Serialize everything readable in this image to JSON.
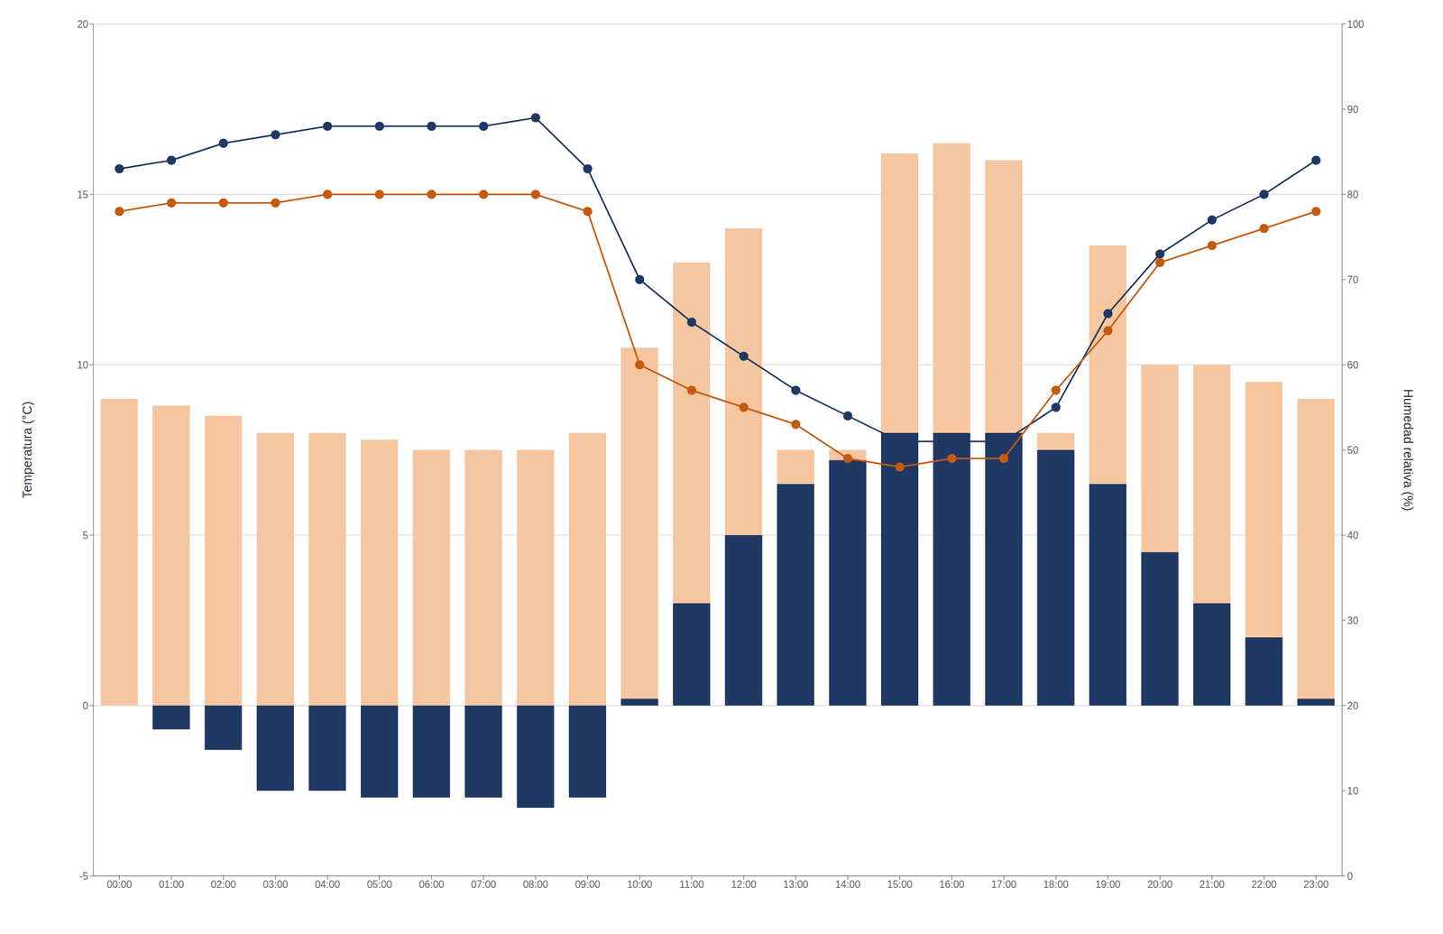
{
  "chart_data": {
    "type": "bar",
    "categories": [
      "00:00",
      "01:00",
      "02:00",
      "03:00",
      "04:00",
      "05:00",
      "06:00",
      "07:00",
      "08:00",
      "09:00",
      "10:00",
      "11:00",
      "12:00",
      "13:00",
      "14:00",
      "15:00",
      "16:00",
      "17:00",
      "18:00",
      "19:00",
      "20:00",
      "21:00",
      "22:00",
      "23:00"
    ],
    "series": [
      {
        "type": "bar",
        "color": "#F5C6A0",
        "values": [
          9.0,
          8.8,
          8.5,
          8.0,
          8.0,
          7.8,
          7.5,
          7.5,
          7.5,
          8.0,
          10.5,
          13.0,
          14.0,
          7.5,
          7.5,
          16.2,
          16.5,
          16.0,
          8.0,
          13.5,
          10.0,
          10.0,
          9.5,
          9.0
        ]
      },
      {
        "type": "bar",
        "color": "#1F3864",
        "values": [
          0.0,
          -0.7,
          -1.3,
          -2.5,
          -2.5,
          -2.7,
          -2.7,
          -2.7,
          -3.0,
          -2.7,
          0.2,
          3.0,
          5.0,
          6.5,
          7.2,
          8.0,
          8.0,
          8.0,
          7.5,
          6.5,
          4.5,
          3.0,
          2.0,
          0.2
        ]
      },
      {
        "type": "line",
        "color": "#1F3864",
        "marker": "circle",
        "axis": "y2",
        "values": [
          83,
          84,
          86,
          87,
          88,
          88,
          88,
          88,
          89,
          83,
          70,
          65,
          61,
          57,
          54,
          51,
          51,
          51,
          55,
          66,
          73,
          77,
          80,
          84
        ]
      },
      {
        "type": "line",
        "color": "#C55A11",
        "marker": "circle",
        "axis": "y2",
        "values": [
          78,
          79,
          79,
          79,
          80,
          80,
          80,
          80,
          80,
          78,
          60,
          57,
          55,
          53,
          49,
          48,
          49,
          49,
          57,
          64,
          72,
          74,
          76,
          78
        ]
      }
    ],
    "ylabel": "Temperatura (°C)",
    "y2label": "Humedad relativa (%)",
    "ylim": [
      -5,
      20
    ],
    "yticks": [
      -5,
      0,
      5,
      10,
      15,
      20
    ],
    "y2lim": [
      0,
      100
    ],
    "y2ticks": [
      0,
      10,
      20,
      30,
      40,
      50,
      60,
      70,
      80,
      90,
      100
    ],
    "grid": true
  }
}
